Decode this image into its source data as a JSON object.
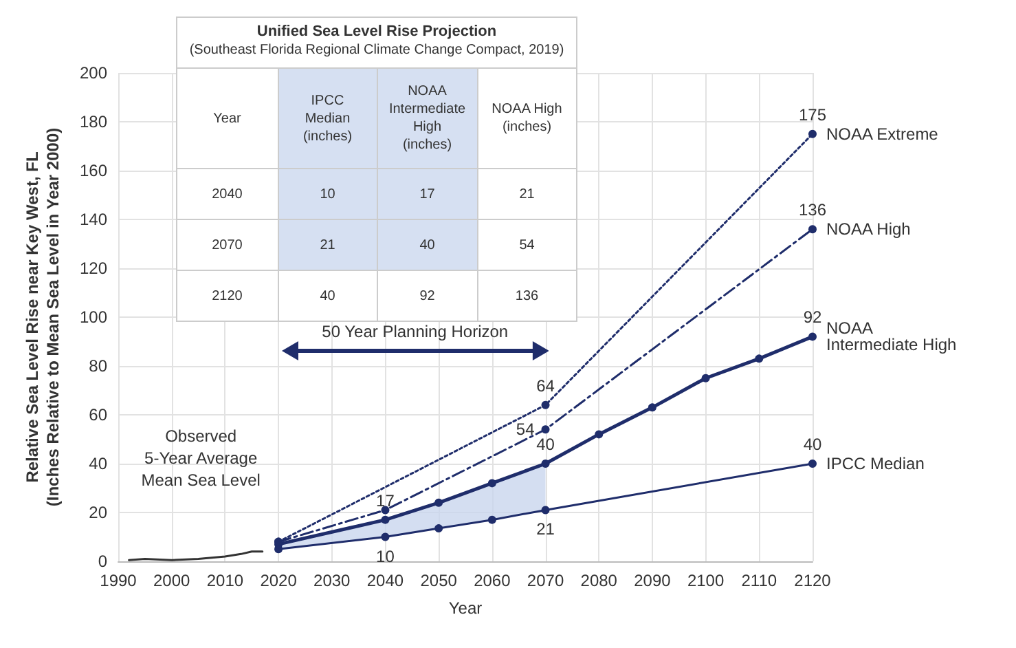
{
  "chart_data": {
    "type": "line",
    "title": "Unified Sea Level Rise Projection",
    "subtitle": "(Southeast Florida Regional Climate Change Compact, 2019)",
    "xlabel": "Year",
    "ylabel": "Relative Sea Level Rise near Key West, FL\n(Inches Relative to Mean Sea Level in Year 2000)",
    "xlim": [
      1990,
      2120
    ],
    "xticks": [
      1990,
      2000,
      2010,
      2020,
      2030,
      2040,
      2050,
      2060,
      2070,
      2080,
      2090,
      2100,
      2110,
      2120
    ],
    "ylim": [
      0,
      200
    ],
    "yticks": [
      0,
      20,
      40,
      60,
      80,
      100,
      120,
      140,
      160,
      180,
      200
    ],
    "grid": true,
    "marker": "circle",
    "series": [
      {
        "color": "#333333",
        "line_style": "solid",
        "marker": "none",
        "x": [
          1992,
          1995,
          2000,
          2005,
          2010,
          2013,
          2015,
          2017
        ],
        "values": [
          0.5,
          1,
          0.5,
          1,
          2,
          3,
          4,
          4
        ]
      },
      {
        "name": "IPCC Median",
        "color": "#1f2d6b",
        "line_style": "solid",
        "x": [
          2020,
          2040,
          2050,
          2060,
          2070,
          2120
        ],
        "values": [
          5,
          10,
          13.5,
          17,
          21,
          40
        ],
        "value_labels": [
          null,
          "10",
          null,
          null,
          "21",
          "40"
        ],
        "lower": [
          5,
          10,
          13.5,
          17,
          21,
          null
        ],
        "upper": [
          7,
          17,
          24,
          32,
          40,
          null
        ]
      },
      {
        "name": "NOAA\nIntermediate High",
        "color": "#1f2d6b",
        "line_style": "solid",
        "x": [
          2020,
          2040,
          2050,
          2060,
          2070,
          2080,
          2090,
          2100,
          2110,
          2120
        ],
        "values": [
          7,
          17,
          24,
          32,
          40,
          52,
          63,
          75,
          83,
          92
        ],
        "value_labels": [
          null,
          "17",
          null,
          null,
          "40",
          null,
          null,
          null,
          null,
          "92"
        ]
      },
      {
        "name": "NOAA High",
        "color": "#1f2d6b",
        "line_style": "dashed",
        "x": [
          2020,
          2040,
          2070,
          2120
        ],
        "values": [
          8,
          21,
          54,
          136
        ],
        "value_labels": [
          null,
          null,
          "54",
          "136"
        ]
      },
      {
        "name": "NOAA Extreme",
        "color": "#1f2d6b",
        "line_style": "dotted",
        "x": [
          2020,
          2070,
          2120
        ],
        "values": [
          8,
          64,
          175
        ],
        "value_labels": [
          null,
          "64",
          "175"
        ]
      }
    ],
    "annotations": [
      "Observed\n5-Year Average\nMean Sea Level",
      "50 Year Planning Horizon",
      "Year",
      "IPCC\nMedian\n(inches)",
      "NOAA\nIntermediate\nHigh\n(inches)",
      "NOAA High\n(inches)",
      "2040",
      "10",
      "17",
      "21",
      "2070",
      "21",
      "40",
      "54",
      "2120",
      "40",
      "92",
      "136"
    ]
  }
}
